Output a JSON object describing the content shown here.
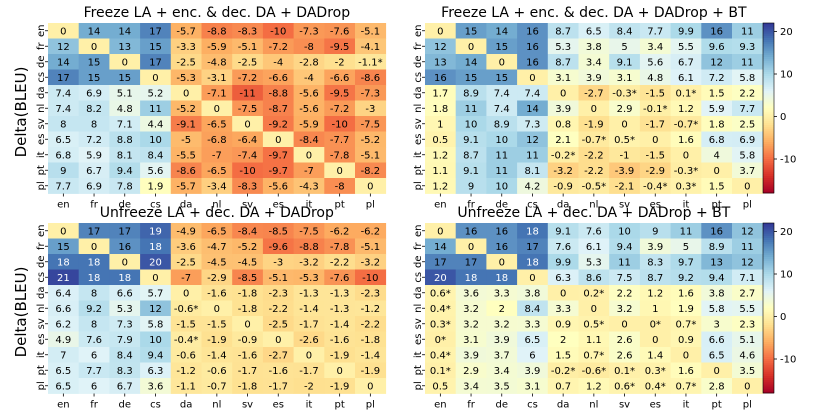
{
  "chart_data": {
    "type": "heatmap",
    "ylabel": "Delta(BLEU)",
    "languages": [
      "en",
      "fr",
      "de",
      "cs",
      "da",
      "nl",
      "sv",
      "es",
      "it",
      "pt",
      "pl"
    ],
    "colorbar": {
      "min": -18,
      "max": 22,
      "ticks": [
        20,
        10,
        0,
        -10
      ],
      "colormap": "RdYlBu"
    },
    "panels": [
      {
        "title": "Freeze LA + enc. & dec. DA + DADrop",
        "values": [
          [
            "0",
            "14",
            "14",
            "17",
            "-5.7",
            "-8.8",
            "-8.3",
            "-10",
            "-7.3",
            "-7.6",
            "-5.1"
          ],
          [
            "12",
            "0",
            "13",
            "15",
            "-3.3",
            "-5.9",
            "-5.1",
            "-7.2",
            "-8",
            "-9.5",
            "-4.1"
          ],
          [
            "14",
            "15",
            "0",
            "17",
            "-2.5",
            "-4.8",
            "-2.5",
            "-4",
            "-2.8",
            "-2",
            "-1.1*"
          ],
          [
            "17",
            "15",
            "15",
            "0",
            "-5.3",
            "-3.1",
            "-7.2",
            "-6.6",
            "-4",
            "-6.6",
            "-8.6"
          ],
          [
            "7.4",
            "6.9",
            "5.1",
            "5.2",
            "0",
            "-7.1",
            "-11",
            "-8.8",
            "-5.6",
            "-9.5",
            "-7.3"
          ],
          [
            "7.4",
            "8.2",
            "4.8",
            "11",
            "-5.2",
            "0",
            "-7.5",
            "-8.7",
            "-5.6",
            "-7.2",
            "-3"
          ],
          [
            "8",
            "8",
            "7.1",
            "4.4",
            "-9.1",
            "-6.5",
            "0",
            "-9.2",
            "-5.9",
            "-10",
            "-7.5"
          ],
          [
            "6.5",
            "7.2",
            "8.8",
            "10",
            "-5",
            "-6.8",
            "-6.4",
            "0",
            "-8.4",
            "-7.7",
            "-5.2"
          ],
          [
            "6.8",
            "5.9",
            "8.1",
            "8.4",
            "-5.5",
            "-7",
            "-7.4",
            "-9.7",
            "0",
            "-7.8",
            "-5.1"
          ],
          [
            "9",
            "6.7",
            "9.4",
            "5.6",
            "-8.6",
            "-6.5",
            "-10",
            "-9.7",
            "-7",
            "0",
            "-8.2"
          ],
          [
            "7.7",
            "6.9",
            "7.8",
            "1.9",
            "-5.7",
            "-3.4",
            "-8.3",
            "-5.6",
            "-4.3",
            "-8",
            "0"
          ]
        ]
      },
      {
        "title": "Freeze LA + enc. & dec. DA + DADrop + BT",
        "values": [
          [
            "0",
            "15",
            "14",
            "16",
            "8.7",
            "6.5",
            "8.4",
            "7.7",
            "9.9",
            "16",
            "11"
          ],
          [
            "12",
            "0",
            "15",
            "16",
            "5.3",
            "3.8",
            "5",
            "3.4",
            "5.5",
            "9.6",
            "9.3"
          ],
          [
            "13",
            "14",
            "0",
            "16",
            "8.7",
            "3.4",
            "9.1",
            "5.6",
            "6.7",
            "12",
            "11"
          ],
          [
            "16",
            "15",
            "15",
            "0",
            "3.1",
            "3.9",
            "3.1",
            "4.8",
            "6.1",
            "7.2",
            "5.8"
          ],
          [
            "1.7",
            "8.9",
            "7.4",
            "7.4",
            "0",
            "-2.7",
            "-0.3*",
            "-1.5",
            "0.1*",
            "1.5",
            "2.2"
          ],
          [
            "1.8",
            "11",
            "7.4",
            "14",
            "3.9",
            "0",
            "2.9",
            "-0.1*",
            "1.2",
            "5.9",
            "7.7"
          ],
          [
            "1",
            "10",
            "8.9",
            "7.3",
            "0.8",
            "-1.9",
            "0",
            "-1.7",
            "-0.7*",
            "1.8",
            "2.5"
          ],
          [
            "0.5",
            "9.1",
            "10",
            "12",
            "2.1",
            "-0.7*",
            "0.5*",
            "0",
            "1.6",
            "6.8",
            "6.9"
          ],
          [
            "1.2",
            "8.7",
            "11",
            "11",
            "-0.2*",
            "-2.2",
            "-1",
            "-1.5",
            "0",
            "4",
            "5.8"
          ],
          [
            "1.1",
            "9.1",
            "11",
            "8.1",
            "-3.2",
            "-2.2",
            "-3.9",
            "-2.9",
            "-0.3*",
            "0",
            "3.7"
          ],
          [
            "1.2",
            "9",
            "10",
            "4.2",
            "-0.9",
            "-0.5*",
            "-2.1",
            "-0.4*",
            "0.3*",
            "1.5",
            "0"
          ]
        ]
      },
      {
        "title": "Unfreeze LA + dec. DA + DADrop",
        "values": [
          [
            "0",
            "17",
            "17",
            "19",
            "-4.9",
            "-6.5",
            "-8.4",
            "-8.5",
            "-7.5",
            "-6.2",
            "-6.2"
          ],
          [
            "15",
            "0",
            "16",
            "18",
            "-3.6",
            "-4.7",
            "-5.2",
            "-9.6",
            "-8.8",
            "-7.8",
            "-5.1"
          ],
          [
            "18",
            "18",
            "0",
            "20",
            "-2.5",
            "-4.5",
            "-4.5",
            "-3",
            "-3.2",
            "-2.2",
            "-3.2"
          ],
          [
            "21",
            "18",
            "18",
            "0",
            "-7",
            "-2.9",
            "-8.5",
            "-5.1",
            "-5.3",
            "-7.6",
            "-10"
          ],
          [
            "6.4",
            "8",
            "6.6",
            "5.7",
            "0",
            "-1.6",
            "-1.8",
            "-2.3",
            "-1.3",
            "-1.3",
            "-2.3"
          ],
          [
            "6.6",
            "9.2",
            "5.3",
            "12",
            "-0.6*",
            "0",
            "-1.8",
            "-2.2",
            "-1.4",
            "-1.3",
            "-1.2"
          ],
          [
            "6.2",
            "8",
            "7.3",
            "5.8",
            "-1.5",
            "-1.5",
            "0",
            "-2.5",
            "-1.7",
            "-1.4",
            "-2.2"
          ],
          [
            "4.9",
            "7.6",
            "7.9",
            "10",
            "-0.4*",
            "-1.9",
            "-0.9",
            "0",
            "-2.6",
            "-1.6",
            "-1.8"
          ],
          [
            "7",
            "6",
            "8.4",
            "9.4",
            "-0.6",
            "-1.4",
            "-1.6",
            "-2.7",
            "0",
            "-1.9",
            "-1.4"
          ],
          [
            "6.5",
            "7.7",
            "8.3",
            "6.3",
            "-1.2",
            "-0.6",
            "-1.7",
            "-1.6",
            "-1.7",
            "0",
            "-1.9"
          ],
          [
            "6.5",
            "6",
            "6.7",
            "3.6",
            "-1.1",
            "-0.7",
            "-1.8",
            "-1.7",
            "-2",
            "-1.9",
            "0"
          ]
        ]
      },
      {
        "title": "Unfreeze LA + dec. DA + DADrop + BT",
        "values": [
          [
            "0",
            "16",
            "16",
            "18",
            "9.1",
            "7.6",
            "10",
            "9",
            "11",
            "16",
            "12"
          ],
          [
            "14",
            "0",
            "16",
            "17",
            "7.6",
            "6.1",
            "9.4",
            "3.9",
            "5",
            "8.9",
            "11"
          ],
          [
            "17",
            "17",
            "0",
            "18",
            "9.9",
            "5.3",
            "11",
            "8.3",
            "9.7",
            "13",
            "12"
          ],
          [
            "20",
            "18",
            "18",
            "0",
            "6.3",
            "8.6",
            "7.5",
            "8.7",
            "9.2",
            "9.4",
            "7.1"
          ],
          [
            "0.6*",
            "3.6",
            "3.3",
            "3.8",
            "0",
            "0.2*",
            "2.2",
            "1.2",
            "1.6",
            "3.8",
            "2.7"
          ],
          [
            "0.4*",
            "3.2",
            "2",
            "8.4",
            "3.3",
            "0",
            "3.2",
            "1",
            "1.9",
            "5.8",
            "5.5"
          ],
          [
            "0.3*",
            "3.2",
            "3.2",
            "3.3",
            "0.9",
            "0.5*",
            "0",
            "0*",
            "0.7*",
            "3",
            "2.3"
          ],
          [
            "0*",
            "3.1",
            "3.9",
            "6.5",
            "2",
            "1.1",
            "2.6",
            "0",
            "0.9",
            "6.6",
            "5.1"
          ],
          [
            "0.4*",
            "3.9",
            "3.7",
            "6",
            "1.5",
            "0.7*",
            "2.6",
            "1.4",
            "0",
            "6.5",
            "4.6"
          ],
          [
            "0.1*",
            "2.9",
            "3.4",
            "3.9",
            "-0.2*",
            "-0.6*",
            "0.1*",
            "0.3*",
            "1.6",
            "0",
            "3.5"
          ],
          [
            "0.5",
            "3.4",
            "3.5",
            "3.1",
            "0.7",
            "1.2",
            "0.6*",
            "0.4*",
            "0.7*",
            "2.8",
            "0"
          ]
        ]
      }
    ]
  }
}
